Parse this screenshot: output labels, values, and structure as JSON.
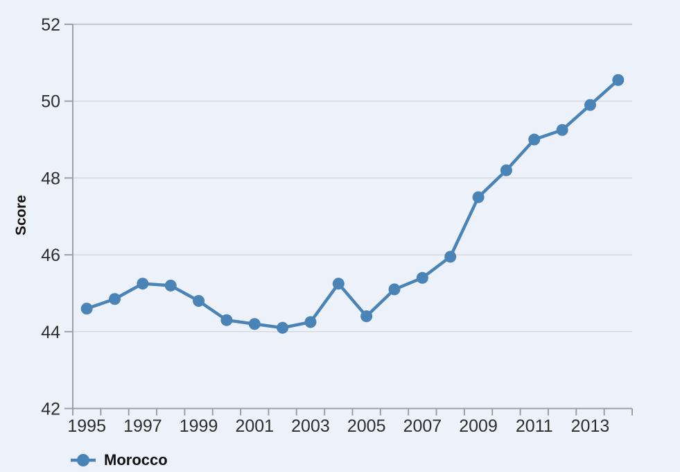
{
  "chart": {
    "y_axis_title": "Score",
    "legend": {
      "series_label": "Morocco"
    }
  },
  "chart_data": {
    "type": "line",
    "title": "",
    "xlabel": "",
    "ylabel": "Score",
    "x": [
      1995,
      1996,
      1997,
      1998,
      1999,
      2000,
      2001,
      2002,
      2003,
      2004,
      2005,
      2006,
      2007,
      2008,
      2009,
      2010,
      2011,
      2012,
      2013,
      2014
    ],
    "series": [
      {
        "name": "Morocco",
        "values": [
          44.6,
          44.85,
          45.25,
          45.2,
          44.8,
          44.3,
          44.2,
          44.1,
          44.25,
          45.25,
          44.4,
          45.1,
          45.4,
          45.95,
          47.5,
          48.2,
          49.0,
          49.25,
          49.9,
          50.55
        ]
      }
    ],
    "ylim": [
      42,
      52
    ],
    "ytick_step": 2,
    "ytick_labels": [
      "42",
      "44",
      "46",
      "48",
      "50",
      "52"
    ],
    "xtick_label_years": [
      1995,
      1997,
      1999,
      2001,
      2003,
      2005,
      2007,
      2009,
      2011,
      2013
    ],
    "grid": "horizontal",
    "legend_position": "bottom-left",
    "colors": {
      "line": "#4a83b6",
      "background": "#edf1f9",
      "gridline": "#d6d9dd",
      "frame_top": "#b3b9bf",
      "axis": "#9aa0a6",
      "label_text": "#2d2d2d",
      "title_text": "#111111"
    }
  }
}
